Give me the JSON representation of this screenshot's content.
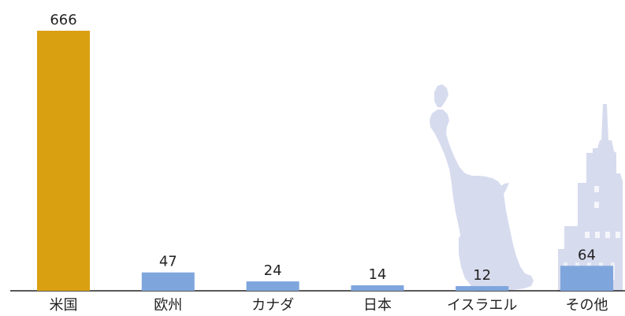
{
  "chart_data": {
    "type": "bar",
    "categories": [
      "米国",
      "欧州",
      "カナダ",
      "日本",
      "イスラエル",
      "その他"
    ],
    "values": [
      666,
      47,
      24,
      14,
      12,
      64
    ],
    "ylim": [
      0,
      666
    ],
    "grid": false,
    "legend": "none",
    "colors": {
      "highlight": "#D9A012",
      "default": "#7FA6DC",
      "axis": "#222222",
      "background_art": "#D7DBEE"
    }
  }
}
